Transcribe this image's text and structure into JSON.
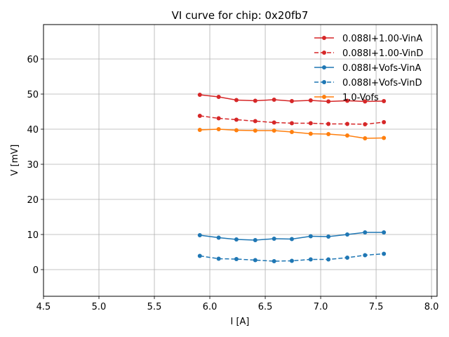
{
  "chart_data": {
    "type": "line",
    "title": "VI curve for chip: 0x20fb7",
    "xlabel": "I [A]",
    "ylabel": "V [mV]",
    "xlim": [
      4.5,
      8.05
    ],
    "ylim": [
      -7.6,
      69.8
    ],
    "xticks": [
      4.5,
      5.0,
      5.5,
      6.0,
      6.5,
      7.0,
      7.5,
      8.0
    ],
    "yticks": [
      0,
      10,
      20,
      30,
      40,
      50,
      60
    ],
    "grid": true,
    "legend_position": "top-right",
    "x": [
      5.91,
      6.08,
      6.24,
      6.41,
      6.58,
      6.74,
      6.91,
      7.07,
      7.24,
      7.4,
      7.57
    ],
    "series": [
      {
        "name": "0.088I+1.00-VinA",
        "color": "#d62728",
        "dashed": false,
        "values": [
          49.8,
          49.2,
          48.3,
          48.1,
          48.4,
          48.0,
          48.2,
          47.9,
          48.1,
          47.9,
          48.0
        ]
      },
      {
        "name": "0.088I+1.00-VinD",
        "color": "#d62728",
        "dashed": true,
        "values": [
          43.8,
          43.1,
          42.7,
          42.3,
          41.9,
          41.7,
          41.7,
          41.5,
          41.5,
          41.4,
          42.0
        ]
      },
      {
        "name": "0.088I+Vofs-VinA",
        "color": "#1f77b4",
        "dashed": false,
        "values": [
          9.8,
          9.1,
          8.6,
          8.4,
          8.8,
          8.7,
          9.5,
          9.4,
          10.0,
          10.6,
          10.6
        ]
      },
      {
        "name": "0.088I+Vofs-VinD",
        "color": "#1f77b4",
        "dashed": true,
        "values": [
          3.9,
          3.1,
          3.0,
          2.7,
          2.4,
          2.5,
          2.9,
          2.9,
          3.4,
          4.1,
          4.5
        ]
      },
      {
        "name": "1.0-Vofs",
        "color": "#ff7f0e",
        "dashed": false,
        "values": [
          39.8,
          40.0,
          39.7,
          39.6,
          39.6,
          39.2,
          38.7,
          38.6,
          38.2,
          37.4,
          37.5
        ]
      }
    ]
  }
}
